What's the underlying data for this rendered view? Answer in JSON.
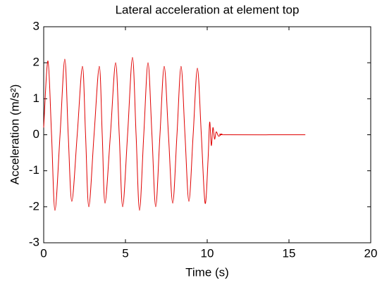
{
  "chart_data": {
    "type": "line",
    "title": "Lateral acceleration at element top",
    "x_label": "Time (s)",
    "y_label": "Acceleration (m/s²)",
    "x": [
      0,
      0.26,
      0.48,
      0.69,
      1.0,
      1.29,
      1.5,
      1.72,
      2.05,
      2.37,
      2.56,
      2.76,
      3.08,
      3.4,
      3.58,
      3.75,
      4.08,
      4.4,
      4.62,
      4.83,
      5.13,
      5.43,
      5.65,
      5.86,
      6.12,
      6.38,
      6.62,
      6.85,
      7.11,
      7.37,
      7.63,
      7.89,
      8.15,
      8.4,
      8.64,
      8.88,
      9.14,
      9.4,
      9.64,
      9.87,
      10.05,
      10.15,
      10.25,
      10.35,
      10.45,
      10.55,
      10.7,
      10.9,
      11.2,
      16
    ],
    "series": [
      {
        "color": "#e00000",
        "values": [
          0.2,
          2.05,
          0,
          -2.1,
          0,
          2.1,
          0,
          -1.85,
          0,
          1.9,
          0,
          -2.0,
          0,
          1.9,
          0,
          -1.9,
          0,
          2.0,
          0,
          -2.0,
          0,
          2.15,
          0,
          -2.1,
          0,
          2.0,
          0,
          -2.0,
          0,
          1.9,
          0,
          -1.9,
          0,
          1.9,
          0,
          -1.85,
          0,
          1.85,
          0,
          -1.9,
          -0.7,
          0.35,
          -0.3,
          0.2,
          -0.12,
          0.08,
          -0.04,
          0.02,
          0,
          0
        ]
      }
    ],
    "xlim": [
      0,
      20
    ],
    "xticks": [
      0,
      5,
      10,
      15,
      20
    ],
    "ylim": [
      -3,
      3
    ],
    "yticks": [
      -3,
      -2,
      -1,
      0,
      1,
      2,
      3
    ]
  }
}
